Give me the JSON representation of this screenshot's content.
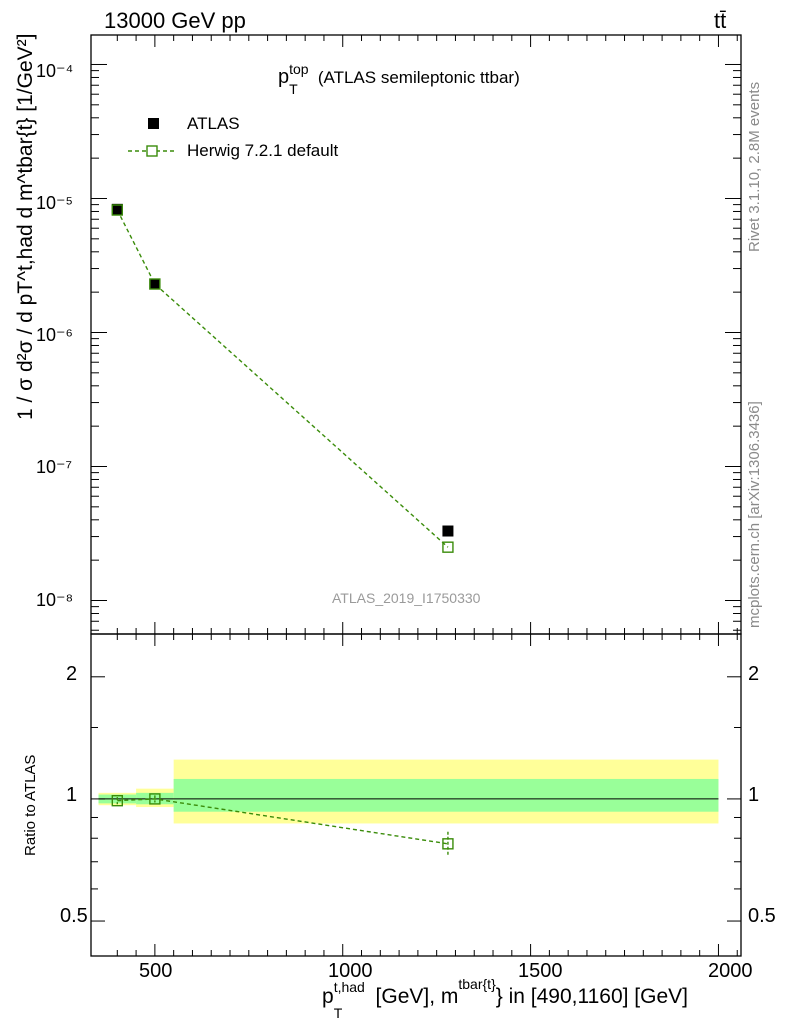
{
  "header": {
    "energy_label": "13000 GeV pp",
    "process_label": "tt̄"
  },
  "side_labels": {
    "rivet": "Rivet 3.1.10,  2.8M events",
    "mcplots": "mcplots.cern.ch [arXiv:1306.3436]"
  },
  "watermark": "ATLAS_2019_I1750330",
  "legend": {
    "title_main": "p",
    "title_sup": "top",
    "title_sub": "T",
    "title_rest": "(ATLAS semileptonic ttbar)",
    "entries": [
      {
        "label": "ATLAS",
        "marker": "filled-square",
        "color": "#000000"
      },
      {
        "label": "Herwig 7.2.1 default",
        "marker": "open-square-dashed",
        "color": "#3a8c0a"
      }
    ]
  },
  "axes": {
    "xlabel_p": "p",
    "xlabel_sup1": "t,had",
    "xlabel_sub1": "T",
    "xlabel_mid": " [GeV], m",
    "xlabel_sup2": "tbar{t}",
    "xlabel_end": "} in [490,1160] [GeV]",
    "ylabel_top": "1 / σ d²σ / d pT^t,had d m^tbar{t} [1/GeV²]",
    "ylabel_ratio": "Ratio to ATLAS",
    "main_ytick_labels": [
      "10⁻⁸",
      "10⁻⁷",
      "10⁻⁶",
      "10⁻⁵",
      "10⁻⁴"
    ],
    "ratio_ytick_labels": [
      "0.5",
      "1",
      "2"
    ],
    "xtick_labels": [
      "500",
      "1000",
      "1500",
      "2000"
    ]
  },
  "chart_data": {
    "type": "scatter",
    "xlim": [
      330,
      2060
    ],
    "main_ylim_log10": [
      -8.25,
      -3.78
    ],
    "ratio_ylim": [
      0.41,
      2.55
    ],
    "atlas": {
      "x": [
        400,
        500,
        1280
      ],
      "y": [
        8.3e-06,
        2.3e-06,
        3.3e-08
      ]
    },
    "herwig": {
      "x": [
        400,
        500,
        1280
      ],
      "y": [
        8.2e-06,
        2.3e-06,
        2.5e-08
      ]
    },
    "ratio": {
      "x": [
        400,
        500,
        1280
      ],
      "y": [
        0.99,
        1.0,
        0.775
      ],
      "err": [
        0.02,
        0.02,
        0.055
      ]
    },
    "bands": [
      {
        "xmin": 350,
        "xmax": 450,
        "yellow": [
          0.965,
          1.035
        ],
        "green": [
          0.975,
          1.025
        ]
      },
      {
        "xmin": 450,
        "xmax": 550,
        "yellow": [
          0.955,
          1.06
        ],
        "green": [
          0.97,
          1.035
        ]
      },
      {
        "xmin": 550,
        "xmax": 2000,
        "yellow": [
          0.87,
          1.25
        ],
        "green": [
          0.93,
          1.12
        ]
      }
    ],
    "colors": {
      "yellow": "#ffff99",
      "green": "#99ff99",
      "herwig": "#3a8c0a",
      "atlas": "#000000"
    }
  }
}
